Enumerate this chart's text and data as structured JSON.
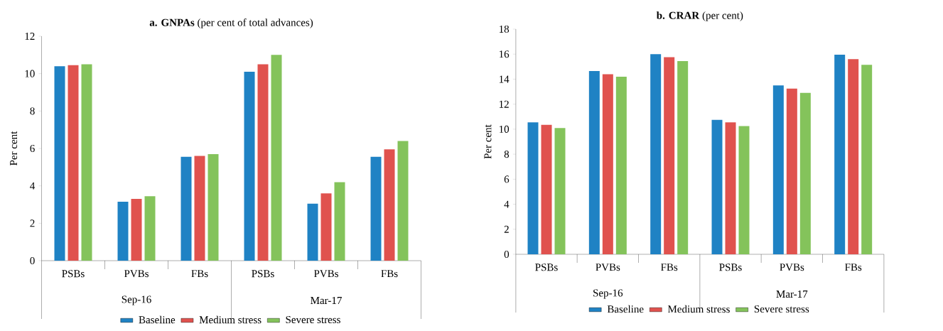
{
  "chart_data": [
    {
      "type": "bar",
      "title": "**a. GNPAs** (per cent of total advances)",
      "ylabel": "Per cent",
      "categories": [
        "PSBs",
        "PVBs",
        "FBs",
        "PSBs",
        "PVBs",
        "FBs"
      ],
      "series": [
        {
          "name": "Baseline",
          "color": "#1f82c4",
          "values": [
            10.4,
            3.15,
            5.55,
            10.1,
            3.05,
            5.55
          ]
        },
        {
          "name": "Medium stress",
          "color": "#e0524e",
          "values": [
            10.45,
            3.3,
            5.6,
            10.5,
            3.6,
            5.95
          ]
        },
        {
          "name": "Severe stress",
          "color": "#84c35b",
          "values": [
            10.5,
            3.45,
            5.7,
            11.0,
            4.2,
            6.4
          ]
        }
      ],
      "ylim": [
        0,
        12
      ],
      "yticks": [
        0,
        2,
        4,
        6,
        8,
        10,
        12
      ],
      "legend": "bottom",
      "annotations": [
        "Sep-16",
        "Mar-17"
      ]
    },
    {
      "type": "bar",
      "title": "**b. CRAR** (per cent)",
      "ylabel": "Per cent",
      "categories": [
        "PSBs",
        "PVBs",
        "FBs",
        "PSBs",
        "PVBs",
        "FBs"
      ],
      "series": [
        {
          "name": "Baseline",
          "color": "#1f82c4",
          "values": [
            10.55,
            14.65,
            16.0,
            10.75,
            13.5,
            15.95
          ]
        },
        {
          "name": "Medium stress",
          "color": "#e0524e",
          "values": [
            10.35,
            14.4,
            15.75,
            10.55,
            13.25,
            15.6
          ]
        },
        {
          "name": "Severe stress",
          "color": "#84c35b",
          "values": [
            10.1,
            14.2,
            15.45,
            10.25,
            12.9,
            15.15
          ]
        }
      ],
      "ylim": [
        0,
        18
      ],
      "yticks": [
        0,
        2,
        4,
        6,
        8,
        10,
        12,
        14,
        16,
        18
      ],
      "legend": "bottom",
      "annotations": [
        "Sep-16",
        "Mar-17"
      ]
    }
  ]
}
